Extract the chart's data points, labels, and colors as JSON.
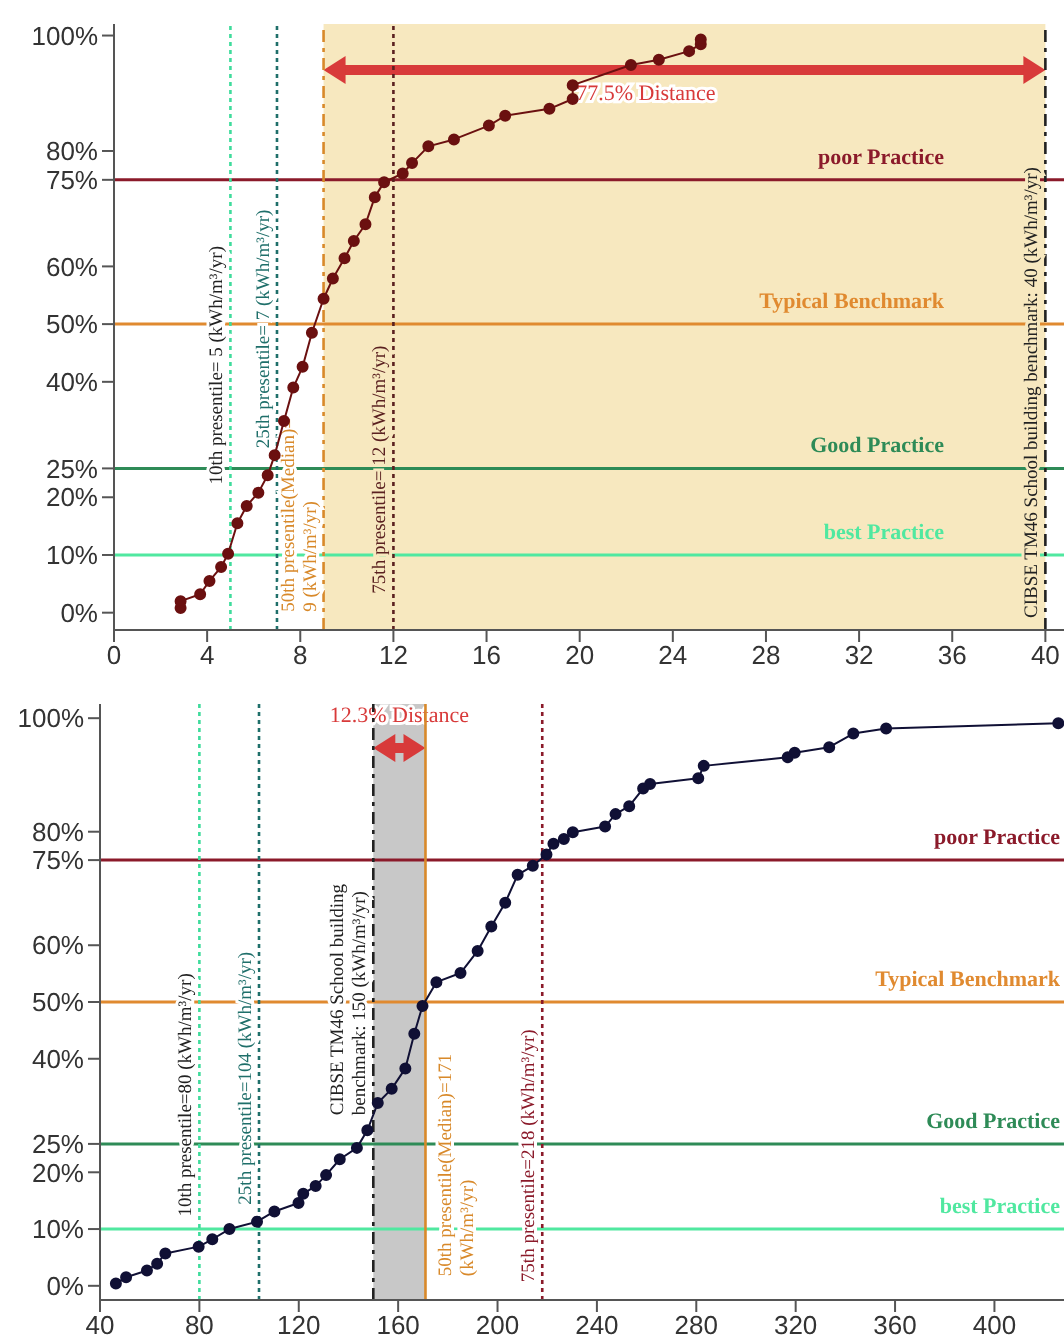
{
  "chart_data": [
    {
      "type": "line",
      "marker": "circle",
      "xlim": [
        0,
        40.8
      ],
      "xticks": [
        0,
        4,
        8,
        12,
        16,
        20,
        24,
        28,
        32,
        36,
        40
      ],
      "ylim": [
        -3,
        102
      ],
      "yticks": [
        {
          "value": 0,
          "label": "0%"
        },
        {
          "value": 10,
          "label": "10%"
        },
        {
          "value": 20,
          "label": "20%"
        },
        {
          "value": 25,
          "label": "25%"
        },
        {
          "value": 40,
          "label": "40%"
        },
        {
          "value": 50,
          "label": "50%"
        },
        {
          "value": 60,
          "label": "60%"
        },
        {
          "value": 75,
          "label": "75%"
        },
        {
          "value": 80,
          "label": "80%"
        },
        {
          "value": 100,
          "label": "100%"
        }
      ],
      "grid": false,
      "legend": false,
      "series": [
        {
          "color": "#6b1010",
          "x": [
            2.86,
            2.86,
            3.7,
            4.1,
            4.6,
            4.9,
            5.3,
            5.7,
            6.2,
            6.6,
            6.9,
            7.3,
            7.7,
            8.1,
            8.5,
            9.0,
            9.4,
            9.9,
            10.3,
            10.8,
            11.2,
            11.6,
            12.4,
            12.8,
            13.5,
            14.6,
            16.1,
            16.8,
            18.7,
            19.7,
            19.7,
            22.2,
            23.4,
            24.7,
            25.2,
            25.2
          ],
          "values": [
            0.8,
            2,
            3.2,
            5.5,
            7.9,
            10.2,
            15.5,
            18.5,
            20.8,
            23.8,
            27.3,
            33.2,
            39,
            42.6,
            48.5,
            54.4,
            57.9,
            61.4,
            64.4,
            67.3,
            72,
            74.6,
            76.1,
            77.9,
            80.8,
            82,
            84.4,
            86.1,
            87.3,
            89,
            91.4,
            94.9,
            95.8,
            97.3,
            98.5,
            99.3
          ]
        }
      ],
      "bands": [
        {
          "axis": "x",
          "from": 9,
          "to": 40,
          "color": "#f7e8bf"
        }
      ],
      "ref_lines": [
        {
          "axis": "x",
          "value": 5,
          "label": "10th presentile= 5 (kWh/m³/yr)",
          "color": "#3fdc9c",
          "line_style": "dotted"
        },
        {
          "axis": "x",
          "value": 7,
          "label": "25th presentile= 7 (kWh/m³/yr)",
          "color": "#1f6f6a",
          "line_style": "dotted"
        },
        {
          "axis": "x",
          "value": 9,
          "label": "50th presentile(Median)= 9 (kWh/m³/yr)",
          "color": "#d8892a",
          "line_style": "dashed"
        },
        {
          "axis": "x",
          "value": 12,
          "label": "75th presentile= 12 (kWh/m³/yr)",
          "color": "#5a2020",
          "line_style": "dotted"
        },
        {
          "axis": "x",
          "value": 40,
          "label": "CIBSE TM46 School building benchmark: 40 (kWh/m³/yr)",
          "color": "#222222",
          "line_style": "dashed"
        },
        {
          "axis": "y",
          "value": 75,
          "label": "poor Practice",
          "color": "#8b1a2a",
          "line_style": "solid"
        },
        {
          "axis": "y",
          "value": 50,
          "label": "Typical Benchmark",
          "color": "#e08a30",
          "line_style": "solid"
        },
        {
          "axis": "y",
          "value": 25,
          "label": "Good Practice",
          "color": "#2e8b57",
          "line_style": "solid"
        },
        {
          "axis": "y",
          "value": 10,
          "label": "best Practice",
          "color": "#50e8a0",
          "line_style": "solid"
        }
      ],
      "annotations": [
        "77.5% Distance"
      ]
    },
    {
      "type": "line",
      "marker": "circle",
      "xlim": [
        40,
        428
      ],
      "xticks": [
        40,
        80,
        120,
        160,
        200,
        240,
        280,
        320,
        360,
        400
      ],
      "ylim": [
        -2.5,
        102.5
      ],
      "yticks": [
        {
          "value": 0,
          "label": "0%"
        },
        {
          "value": 10,
          "label": "10%"
        },
        {
          "value": 20,
          "label": "20%"
        },
        {
          "value": 25,
          "label": "25%"
        },
        {
          "value": 40,
          "label": "40%"
        },
        {
          "value": 50,
          "label": "50%"
        },
        {
          "value": 60,
          "label": "60%"
        },
        {
          "value": 75,
          "label": "75%"
        },
        {
          "value": 80,
          "label": "80%"
        },
        {
          "value": 100,
          "label": "100%"
        }
      ],
      "grid": false,
      "legend": false,
      "series": [
        {
          "color": "#101035",
          "x": [
            46.4,
            50.5,
            58.9,
            63,
            66.3,
            79.7,
            85.2,
            92.1,
            103.2,
            110.2,
            119.9,
            121.8,
            126.8,
            131,
            136.5,
            143.4,
            147.6,
            151.8,
            157.4,
            162.9,
            166.5,
            169.8,
            175.4,
            185.1,
            192,
            197.5,
            203.1,
            208.1,
            214.2,
            219.7,
            222.5,
            226.7,
            230.3,
            243.3,
            247.5,
            253,
            258.6,
            261.4,
            280.8,
            283,
            316.8,
            319.6,
            333.5,
            343.2,
            356.4,
            425.7
          ],
          "values": [
            0.4,
            1.5,
            2.7,
            3.9,
            5.7,
            6.9,
            8.2,
            10,
            11.3,
            13.1,
            14.6,
            16.2,
            17.6,
            19.5,
            22.3,
            24.3,
            27.4,
            32.2,
            34.7,
            38.3,
            44.4,
            49.3,
            53.5,
            55.1,
            59,
            63.3,
            67.5,
            72.4,
            74,
            76,
            77.9,
            78.7,
            79.9,
            80.9,
            83.1,
            84.5,
            87.6,
            88.4,
            89.4,
            91.6,
            93.1,
            93.9,
            94.9,
            97.3,
            98.2,
            99.1
          ]
        }
      ],
      "bands": [
        {
          "axis": "x",
          "from": 150,
          "to": 171,
          "color": "#c8c8c8"
        }
      ],
      "ref_lines": [
        {
          "axis": "x",
          "value": 80,
          "label": "10th presentile=80 (kWh/m³/yr)",
          "color": "#3fdc9c",
          "line_style": "dotted"
        },
        {
          "axis": "x",
          "value": 104,
          "label": "25th presentile=104 (kWh/m³/yr)",
          "color": "#1f6f6a",
          "line_style": "dotted"
        },
        {
          "axis": "x",
          "value": 150,
          "label": "CIBSE TM46 School building benchmark: 150 (kWh/m³/yr)",
          "color": "#222222",
          "line_style": "dashed"
        },
        {
          "axis": "x",
          "value": 171,
          "label": "50th presentile(Median)=171 (kWh/m³/yr)",
          "color": "#d8892a",
          "line_style": "solid"
        },
        {
          "axis": "x",
          "value": 218,
          "label": "75th presentile=218 (kWh/m³/yr)",
          "color": "#8b1a2a",
          "line_style": "dotted"
        },
        {
          "axis": "y",
          "value": 75,
          "label": "poor Practice",
          "color": "#8b1a2a",
          "line_style": "solid"
        },
        {
          "axis": "y",
          "value": 50,
          "label": "Typical Benchmark",
          "color": "#e08a30",
          "line_style": "solid"
        },
        {
          "axis": "y",
          "value": 25,
          "label": "Good Practice",
          "color": "#2e8b57",
          "line_style": "solid"
        },
        {
          "axis": "y",
          "value": 10,
          "label": "best Practice",
          "color": "#50e8a0",
          "line_style": "solid"
        }
      ],
      "annotations": [
        "12.3% Distance"
      ]
    }
  ]
}
